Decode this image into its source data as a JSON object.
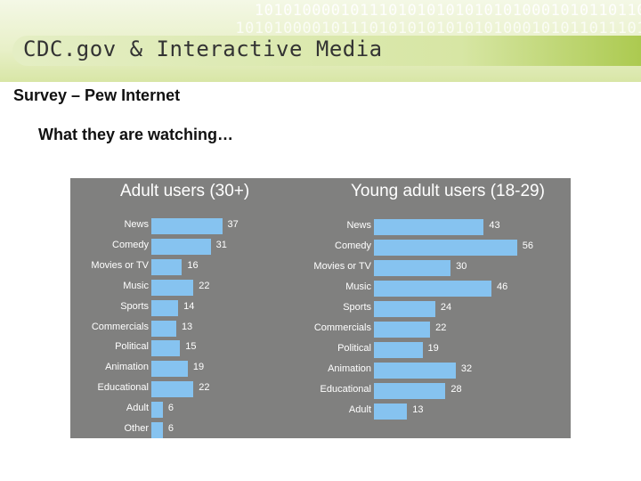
{
  "header": {
    "title": "CDC.gov & Interactive Media",
    "binary_line1": "10101000010111010101010101010001010110110",
    "binary_line2": "1010100001011101010101010101000101011011101"
  },
  "slide": {
    "subtitle": "Survey – Pew Internet",
    "heading": "What they are watching…"
  },
  "chart_data": [
    {
      "type": "bar",
      "orientation": "horizontal",
      "title": "Adult users (30+)",
      "categories": [
        "News",
        "Comedy",
        "Movies or TV",
        "Music",
        "Sports",
        "Commercials",
        "Political",
        "Animation",
        "Educational",
        "Adult",
        "Other"
      ],
      "values": [
        37,
        31,
        16,
        22,
        14,
        13,
        15,
        19,
        22,
        6,
        6
      ],
      "bar_color": "#86c3f0",
      "background": "#80807f"
    },
    {
      "type": "bar",
      "orientation": "horizontal",
      "title": "Young adult users (18-29)",
      "categories": [
        "News",
        "Comedy",
        "Movies or TV",
        "Music",
        "Sports",
        "Commercials",
        "Political",
        "Animation",
        "Educational",
        "Adult"
      ],
      "values": [
        43,
        56,
        30,
        46,
        24,
        22,
        19,
        32,
        28,
        13
      ],
      "bar_color": "#86c3f0",
      "background": "#80807f"
    }
  ]
}
